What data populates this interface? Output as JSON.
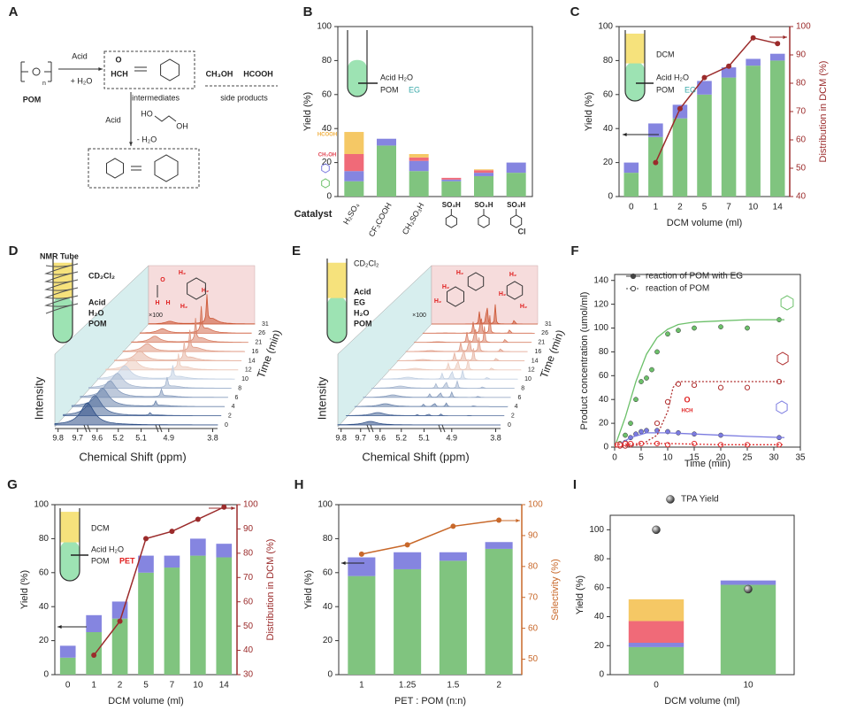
{
  "chart_data": [
    {
      "panel": "B",
      "type": "bar",
      "ylabel": "Yield (%)",
      "xlabel": "Catalyst",
      "categories": [
        "H₂SO₄",
        "CF₃COOH",
        "CH₃SO₃H",
        "SO₃H",
        "SO₃H",
        "SO₃H"
      ],
      "rotate_labels": [
        true,
        true,
        true,
        false,
        false,
        false
      ],
      "ylim": [
        0,
        100
      ],
      "yticks": [
        0,
        20,
        40,
        60,
        80,
        100
      ],
      "series": [
        {
          "kind": "bar",
          "color": "#80c47f",
          "values": [
            9,
            30,
            15,
            9,
            12,
            14
          ]
        },
        {
          "kind": "bar",
          "color": "#8585e0",
          "values": [
            6,
            4,
            6,
            1,
            2,
            6
          ]
        },
        {
          "kind": "bar",
          "color": "#f06a78",
          "values": [
            10,
            0,
            2,
            1,
            1.5,
            0
          ]
        },
        {
          "kind": "bar",
          "color": "#f5c865",
          "values": [
            13,
            0,
            2,
            0,
            0.5,
            0
          ]
        }
      ],
      "inset_labels": [
        "Acid  H₂O",
        "POM"
      ],
      "reagent": "EG",
      "reagent_color": "#39a9a9",
      "annotations": [
        {
          "text": "HCOOH",
          "color": "#f0b040"
        },
        {
          "text": "CH₃OH",
          "color": "#e0404f"
        },
        {
          "text": "Cl",
          "color": "#333333"
        }
      ]
    },
    {
      "panel": "C",
      "type": "bar",
      "ylabel": "Yield (%)",
      "xlabel": "DCM volume (ml)",
      "y2label": "Distribution in DCM (%)",
      "y2color": "#9b2b2b",
      "categories": [
        "0",
        "1",
        "2",
        "5",
        "7",
        "10",
        "14"
      ],
      "ylim": [
        0,
        100
      ],
      "yticks": [
        0,
        20,
        40,
        60,
        80,
        100
      ],
      "y2lim": [
        40,
        100
      ],
      "y2ticks": [
        40,
        50,
        60,
        70,
        80,
        90,
        100
      ],
      "series": [
        {
          "kind": "bar",
          "color": "#80c47f",
          "values": [
            14,
            35,
            46,
            60,
            70,
            77,
            80
          ]
        },
        {
          "kind": "bar",
          "color": "#8585e0",
          "values": [
            6,
            8,
            8,
            8,
            6,
            4,
            4
          ]
        },
        {
          "kind": "line",
          "axis": "y2",
          "color": "#9b2b2b",
          "values": [
            null,
            52,
            71,
            82,
            86,
            96,
            94
          ]
        }
      ],
      "inset_labels": [
        "DCM",
        "Acid  H₂O",
        "POM"
      ],
      "reagent": "EG",
      "reagent_color": "#39a9a9"
    },
    {
      "panel": "F",
      "type": "scatter",
      "xlabel": "Time (min)",
      "ylabel": "Product concentration (umol/ml)",
      "xlim": [
        0,
        35
      ],
      "xticks": [
        0,
        5,
        10,
        15,
        20,
        25,
        30,
        35
      ],
      "ylim": [
        0,
        145
      ],
      "yticks": [
        0,
        20,
        40,
        60,
        80,
        100,
        120,
        140
      ],
      "series": [
        {
          "kind": "scatter",
          "name": "reaction of POM with EG",
          "marker": "filled",
          "color": "#6cc06a",
          "x": [
            0.5,
            1,
            2,
            3,
            4,
            5,
            6,
            7,
            8,
            10,
            12,
            15,
            20,
            25,
            31
          ],
          "values": [
            2,
            3,
            10,
            20,
            40,
            55,
            58,
            65,
            80,
            95,
            98,
            100,
            101,
            100,
            107
          ]
        },
        {
          "kind": "line",
          "color": "#6cc06a",
          "x": [
            0,
            2,
            4,
            6,
            8,
            10,
            12,
            15,
            20,
            25,
            32
          ],
          "values": [
            0,
            25,
            55,
            78,
            92,
            99,
            103,
            105,
            106,
            107,
            107
          ]
        },
        {
          "kind": "scatter",
          "marker": "filled",
          "color": "#7b7be0",
          "x": [
            1,
            2,
            3,
            4,
            5,
            6,
            8,
            10,
            12,
            15,
            20,
            31
          ],
          "values": [
            1,
            4,
            8,
            11,
            13,
            14,
            14,
            13,
            12,
            11,
            10,
            8
          ]
        },
        {
          "kind": "line",
          "color": "#7b7be0",
          "x": [
            0,
            3,
            6,
            10,
            15,
            20,
            25,
            32
          ],
          "values": [
            0,
            8,
            12,
            12,
            11,
            10,
            9,
            8
          ]
        },
        {
          "kind": "scatter",
          "name": "reaction of POM",
          "marker": "open",
          "color": "#b03030",
          "x": [
            1,
            2,
            3,
            5,
            8,
            10,
            12,
            15,
            20,
            25,
            31
          ],
          "values": [
            1,
            1,
            2,
            3,
            20,
            38,
            53,
            52,
            50,
            50,
            55
          ]
        },
        {
          "kind": "line",
          "dash": true,
          "color": "#b03030",
          "x": [
            0,
            5,
            8,
            10,
            11,
            12,
            15,
            20,
            25,
            32
          ],
          "values": [
            0,
            2,
            10,
            30,
            50,
            55,
            55,
            55,
            55,
            55
          ]
        },
        {
          "kind": "scatter",
          "marker": "open",
          "color": "#e03030",
          "x": [
            0.5,
            1,
            2,
            3,
            5,
            8,
            10,
            15,
            20,
            25,
            31
          ],
          "values": [
            2,
            2,
            3,
            3,
            3,
            3,
            2,
            3,
            2,
            2,
            2
          ]
        },
        {
          "kind": "line",
          "dash": true,
          "color": "#e03030",
          "x": [
            0,
            5,
            10,
            20,
            32
          ],
          "values": [
            2,
            3,
            3,
            2,
            2
          ]
        }
      ],
      "annotations": [
        {
          "text": "O",
          "color": "#e02020"
        },
        {
          "text": "HCH",
          "color": "#e02020"
        }
      ]
    },
    {
      "panel": "G",
      "type": "bar",
      "ylabel": "Yield (%)",
      "xlabel": "DCM volume (ml)",
      "y2label": "Distribution in DCM (%)",
      "y2color": "#9b2b2b",
      "categories": [
        "0",
        "1",
        "2",
        "5",
        "7",
        "10",
        "14"
      ],
      "ylim": [
        0,
        100
      ],
      "yticks": [
        0,
        20,
        40,
        60,
        80,
        100
      ],
      "y2lim": [
        30,
        100
      ],
      "y2ticks": [
        30,
        40,
        50,
        60,
        70,
        80,
        90,
        100
      ],
      "series": [
        {
          "kind": "bar",
          "color": "#80c47f",
          "values": [
            10,
            25,
            33,
            60,
            63,
            70,
            69
          ]
        },
        {
          "kind": "bar",
          "color": "#8585e0",
          "values": [
            7,
            10,
            10,
            10,
            7,
            10,
            8
          ]
        },
        {
          "kind": "line",
          "axis": "y2",
          "color": "#9b2b2b",
          "values": [
            null,
            38,
            52,
            86,
            89,
            94,
            99
          ]
        }
      ],
      "inset_labels": [
        "DCM",
        "Acid  H₂O",
        "POM"
      ],
      "reagent": "PET",
      "reagent_color": "#e02020"
    },
    {
      "panel": "H",
      "type": "bar",
      "ylabel": "Yield (%)",
      "xlabel": "PET : POM (n:n)",
      "y2label": "Selectivity (%)",
      "y2color": "#c8682a",
      "categories": [
        "1",
        "1.25",
        "1.5",
        "2"
      ],
      "ylim": [
        0,
        100
      ],
      "yticks": [
        0,
        20,
        40,
        60,
        80,
        100
      ],
      "y2lim": [
        45,
        100
      ],
      "y2ticks": [
        50,
        60,
        70,
        80,
        90,
        100
      ],
      "series": [
        {
          "kind": "bar",
          "color": "#80c47f",
          "values": [
            58,
            62,
            67,
            74
          ]
        },
        {
          "kind": "bar",
          "color": "#8585e0",
          "values": [
            11,
            10,
            5,
            4
          ]
        },
        {
          "kind": "line",
          "axis": "y2",
          "color": "#c8682a",
          "values": [
            84,
            87,
            93,
            95
          ]
        }
      ]
    },
    {
      "panel": "I",
      "type": "bar",
      "ylabel": "Yield (%)",
      "xlabel": "DCM volume (ml)",
      "categories": [
        "0",
        "10"
      ],
      "ylim": [
        0,
        110
      ],
      "yticks": [
        0,
        20,
        40,
        60,
        80,
        100
      ],
      "series": [
        {
          "kind": "bar",
          "color": "#80c47f",
          "values": [
            19,
            62
          ]
        },
        {
          "kind": "bar",
          "color": "#8585e0",
          "values": [
            3,
            3
          ]
        },
        {
          "kind": "bar",
          "color": "#f06a78",
          "values": [
            15,
            0
          ]
        },
        {
          "kind": "bar",
          "color": "#f5c865",
          "values": [
            15,
            0
          ]
        },
        {
          "kind": "scatter",
          "name": "TPA Yield",
          "marker": "filled",
          "color": "#555555",
          "values": [
            100,
            59
          ]
        }
      ]
    }
  ],
  "diagrams": {
    "A": {
      "letter": "A",
      "texts": [
        "POM",
        "n",
        "Acid",
        "+ H₂O",
        "O",
        "HCH",
        "intermediates",
        "CH₃OH",
        "HCOOH",
        "side products",
        "Acid",
        "HO",
        "OH",
        "- H₂O"
      ]
    },
    "D": {
      "letter": "D",
      "tube_labels": [
        "NMR Tube",
        "CD₂Cl₂",
        "Acid",
        "H₂O",
        "POM"
      ],
      "structure_labels": [
        "O",
        "H",
        "H",
        "H₂",
        "H₂",
        "H₂"
      ],
      "scale_label": "×100",
      "ylabel": "Intensity",
      "xlabel": "Chemical Shift (ppm)",
      "xticks": [
        "9.8",
        "9.7",
        "9.6",
        "5.2",
        "5.1",
        "4.9",
        "3.8"
      ],
      "time_label": "Time (min)",
      "times": [
        "0",
        "2",
        "4",
        "6",
        "8",
        "10",
        "12",
        "14",
        "16",
        "21",
        "26",
        "31"
      ]
    },
    "E": {
      "letter": "E",
      "tube_labels": [
        "CD₂Cl₂",
        "Acid",
        "EG",
        "H₂O",
        "POM"
      ],
      "structure_labels": [
        "H₂",
        "H₂",
        "H₂",
        "H₂",
        "H₂",
        "H₂"
      ],
      "scale_label": "×100",
      "ylabel": "Intensity",
      "xlabel": "Chemical Shift (ppm)",
      "xticks": [
        "9.8",
        "9.7",
        "9.6",
        "5.2",
        "5.1",
        "4.9",
        "3.8"
      ],
      "time_label": "Time (min)",
      "times": [
        "0",
        "2",
        "4",
        "6",
        "8",
        "10",
        "12",
        "14",
        "16",
        "21",
        "26",
        "31"
      ]
    }
  }
}
